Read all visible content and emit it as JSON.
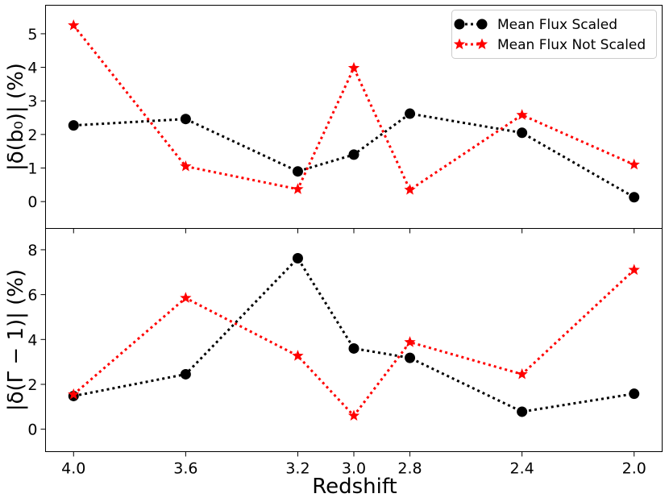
{
  "chart_data": [
    {
      "type": "line",
      "panel": "top",
      "title": "",
      "xlabel": "",
      "ylabel": "|δ(b₀)| (%)",
      "x": [
        4.0,
        3.6,
        3.2,
        3.0,
        2.8,
        2.4,
        2.0
      ],
      "x_tick_labels": [],
      "xlim": [
        4.1,
        1.9
      ],
      "x_inverted": true,
      "ylim": [
        -0.8,
        5.85
      ],
      "y_ticks": [
        0,
        1,
        2,
        3,
        4,
        5
      ],
      "y_tick_labels": [
        "0",
        "1",
        "2",
        "3",
        "4",
        "5"
      ],
      "grid": false,
      "legend_position": "top-right",
      "series": [
        {
          "name": "Mean Flux Scaled",
          "color": "#000000",
          "marker": "circle",
          "linestyle": "dotted",
          "values": [
            2.27,
            2.46,
            0.9,
            1.4,
            2.62,
            2.05,
            0.13
          ]
        },
        {
          "name": "Mean Flux Not Scaled",
          "color": "#ff0000",
          "marker": "star",
          "linestyle": "dotted",
          "values": [
            5.25,
            1.05,
            0.37,
            3.98,
            0.35,
            2.58,
            1.1
          ]
        }
      ]
    },
    {
      "type": "line",
      "panel": "bottom",
      "title": "",
      "xlabel": "Redshift",
      "ylabel": "|δ(Γ − 1)| (%)",
      "x": [
        4.0,
        3.6,
        3.2,
        3.0,
        2.8,
        2.4,
        2.0
      ],
      "x_tick_labels": [
        "4.0",
        "3.6",
        "3.2",
        "3.0",
        "2.8",
        "2.4",
        "2.0"
      ],
      "xlim": [
        4.1,
        1.9
      ],
      "x_inverted": true,
      "ylim": [
        -1.0,
        8.95
      ],
      "y_ticks": [
        0,
        2,
        4,
        6,
        8
      ],
      "y_tick_labels": [
        "0",
        "2",
        "4",
        "6",
        "8"
      ],
      "grid": false,
      "series": [
        {
          "name": "Mean Flux Scaled",
          "color": "#000000",
          "marker": "circle",
          "linestyle": "dotted",
          "values": [
            1.48,
            2.45,
            7.62,
            3.6,
            3.18,
            0.78,
            1.58
          ]
        },
        {
          "name": "Mean Flux Not Scaled",
          "color": "#ff0000",
          "marker": "star",
          "linestyle": "dotted",
          "values": [
            1.55,
            5.85,
            3.27,
            0.6,
            3.88,
            2.45,
            7.1
          ]
        }
      ]
    }
  ]
}
